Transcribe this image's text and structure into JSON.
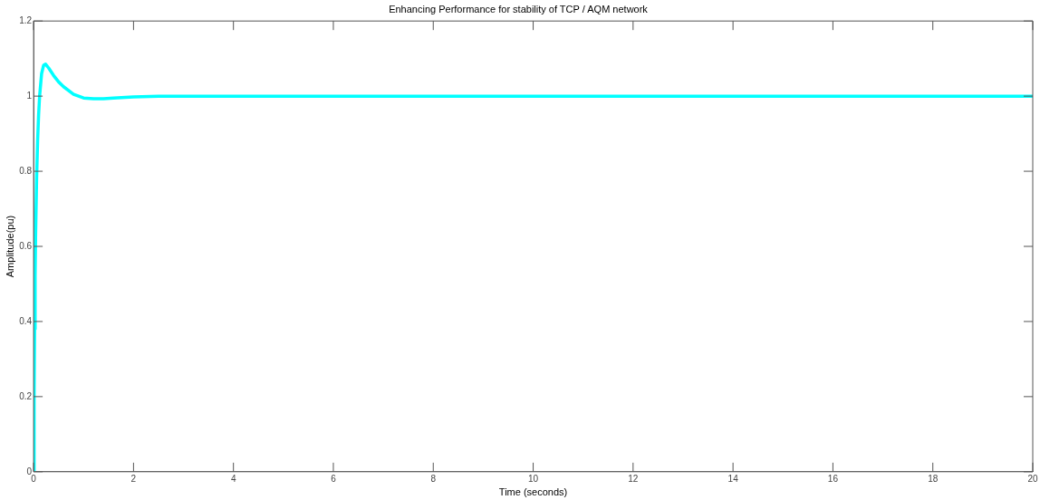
{
  "chart_data": {
    "type": "line",
    "title": "Enhancing Performance for stability of TCP / AQM network",
    "xlabel": "Time (seconds)",
    "ylabel": "Amplitude(pu)",
    "x": [
      0,
      0.01,
      0.02,
      0.03,
      0.04,
      0.06,
      0.08,
      0.1,
      0.12,
      0.16,
      0.2,
      0.24,
      0.3,
      0.4,
      0.5,
      0.6,
      0.8,
      1.0,
      1.2,
      1.4,
      1.6,
      2.0,
      2.5,
      3,
      5,
      10,
      15,
      20
    ],
    "series": [
      {
        "color": "#00ffff",
        "values": [
          0,
          0.2,
          0.38,
          0.52,
          0.63,
          0.78,
          0.88,
          0.95,
          1.0,
          1.06,
          1.082,
          1.085,
          1.075,
          1.055,
          1.038,
          1.025,
          1.005,
          0.995,
          0.993,
          0.993,
          0.995,
          0.998,
          1.0,
          1.0,
          1.0,
          1.0,
          1.0,
          1.0
        ]
      }
    ],
    "xlim": [
      0,
      20
    ],
    "xticks": [
      0,
      2,
      4,
      6,
      8,
      10,
      12,
      14,
      16,
      18,
      20
    ],
    "ylim": [
      0,
      1.2
    ],
    "yticks": [
      0,
      0.2,
      0.4,
      0.6,
      0.8,
      1,
      1.2
    ],
    "legend": false,
    "marker": "none",
    "line_style": "solid"
  }
}
